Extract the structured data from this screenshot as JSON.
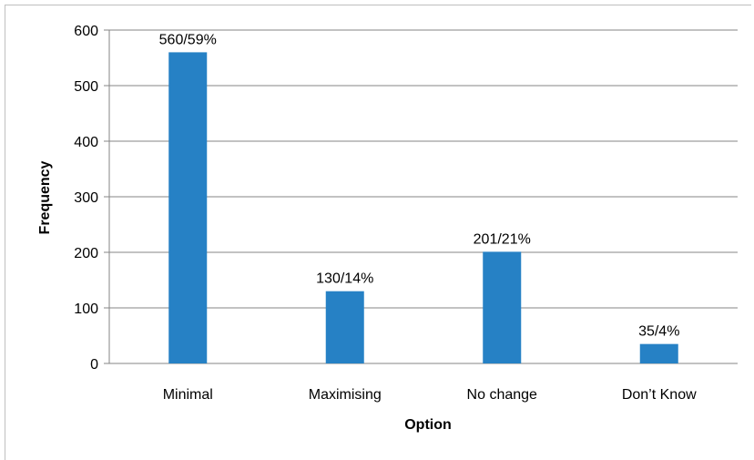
{
  "chart_data": {
    "type": "bar",
    "categories": [
      "Minimal",
      "Maximising",
      "No change",
      "Don’t Know"
    ],
    "values": [
      560,
      130,
      201,
      35
    ],
    "data_labels": [
      "560/59%",
      "130/14%",
      "201/21%",
      "35/4%"
    ],
    "title": "",
    "xlabel": "Option",
    "ylabel": "Frequency",
    "ylim": [
      0,
      600
    ],
    "yticks": [
      "0",
      "100",
      "200",
      "300",
      "400",
      "500",
      "600"
    ],
    "grid": true,
    "legend": "none",
    "bar_color": "#2681C5",
    "grid_color": "#858585"
  }
}
